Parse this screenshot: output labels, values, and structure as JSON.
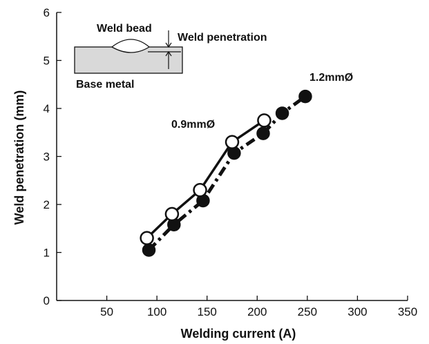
{
  "chart_data": {
    "type": "line",
    "title": "",
    "xlabel": "Welding current (A)",
    "ylabel": "Weld penetration (mm)",
    "xlim": [
      0,
      350
    ],
    "ylim": [
      0,
      6
    ],
    "xticks": [
      50,
      100,
      150,
      200,
      250,
      300,
      350
    ],
    "yticks": [
      0,
      1,
      2,
      3,
      4,
      5,
      6
    ],
    "grid": false,
    "series": [
      {
        "name": "0.9mmØ",
        "line_style": "solid",
        "marker": "open-circle",
        "x": [
          90,
          115,
          143,
          175,
          207
        ],
        "y": [
          1.3,
          1.8,
          2.3,
          3.3,
          3.75
        ]
      },
      {
        "name": "1.2mmØ",
        "line_style": "dash-dot",
        "marker": "filled-circle",
        "x": [
          92,
          117,
          146,
          177,
          206,
          225,
          248
        ],
        "y": [
          1.05,
          1.58,
          2.08,
          3.07,
          3.48,
          3.9,
          4.25
        ]
      }
    ],
    "inset": {
      "weld_bead_label": "Weld bead",
      "weld_penetration_label": "Weld penetration",
      "base_metal_label": "Base metal"
    }
  },
  "colors": {
    "axis": "#111111",
    "line": "#111111",
    "open_marker_fill": "#ffffff",
    "filled_marker_fill": "#111111",
    "base_metal_fill": "#d9d9d9"
  }
}
